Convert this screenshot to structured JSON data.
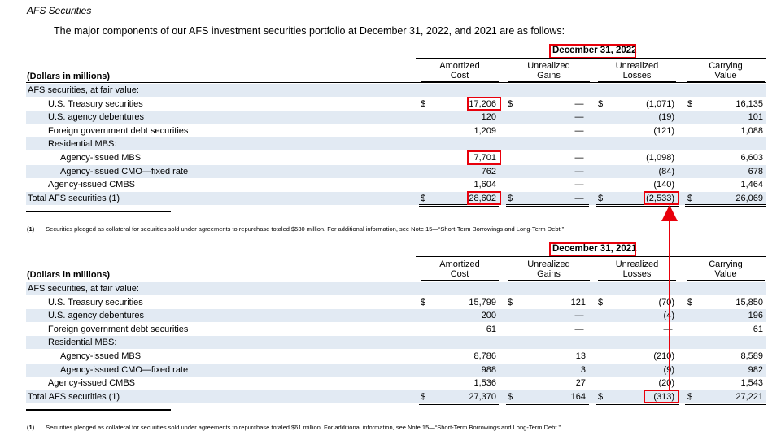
{
  "title": "AFS Securities",
  "intro": "The major components of our AFS investment securities portfolio at December 31, 2022, and 2021 are as follows:",
  "columns": {
    "amortized": [
      "Amortized",
      "Cost"
    ],
    "gains": [
      "Unrealized",
      "Gains"
    ],
    "losses": [
      "Unrealized",
      "Losses"
    ],
    "carrying": [
      "Carrying",
      "Value"
    ]
  },
  "dollars_label": "(Dollars in millions)",
  "highlight_color": "#e8000b",
  "shade_color": "#e2eaf3",
  "tables": [
    {
      "date": "December 31, 2022",
      "rows": [
        {
          "label": "AFS securities, at fair value:",
          "indent": 0,
          "shade": true
        },
        {
          "label": "U.S. Treasury securities",
          "indent": 1,
          "dollar": "$",
          "cost": "17,206",
          "gains": "—",
          "losses": "(1,071)",
          "value": "16,135"
        },
        {
          "label": "U.S. agency debentures",
          "indent": 1,
          "shade": true,
          "cost": "120",
          "gains": "—",
          "losses": "(19)",
          "value": "101"
        },
        {
          "label": "Foreign government debt securities",
          "indent": 1,
          "cost": "1,209",
          "gains": "—",
          "losses": "(121)",
          "value": "1,088"
        },
        {
          "label": "Residential MBS:",
          "indent": 1,
          "shade": true
        },
        {
          "label": "Agency-issued MBS",
          "indent": 2,
          "cost": "7,701",
          "gains": "—",
          "losses": "(1,098)",
          "value": "6,603"
        },
        {
          "label": "Agency-issued CMO—fixed rate",
          "indent": 2,
          "shade": true,
          "cost": "762",
          "gains": "—",
          "losses": "(84)",
          "value": "678"
        },
        {
          "label": "Agency-issued CMBS",
          "indent": 1,
          "cost": "1,604",
          "gains": "—",
          "losses": "(140)",
          "value": "1,464"
        },
        {
          "label": "Total AFS securities (1)",
          "indent": 0,
          "shade": true,
          "total": true,
          "dollar": "$",
          "cost": "28,602",
          "gains": "—",
          "losses": "(2,533)",
          "value": "26,069"
        }
      ],
      "footnote_num": "(1)",
      "footnote": "Securities pledged as collateral for securities sold under agreements to repurchase totaled $530 million. For additional information, see Note 15—“Short-Term Borrowings and Long-Term Debt.”"
    },
    {
      "date": "December 31, 2021",
      "rows": [
        {
          "label": "AFS securities, at fair value:",
          "indent": 0,
          "shade": true
        },
        {
          "label": "U.S. Treasury securities",
          "indent": 1,
          "dollar": "$",
          "cost": "15,799",
          "gains": "121",
          "losses": "(70)",
          "value": "15,850"
        },
        {
          "label": "U.S. agency debentures",
          "indent": 1,
          "shade": true,
          "cost": "200",
          "gains": "—",
          "losses": "(4)",
          "value": "196"
        },
        {
          "label": "Foreign government debt securities",
          "indent": 1,
          "cost": "61",
          "gains": "—",
          "losses": "—",
          "value": "61"
        },
        {
          "label": "Residential MBS:",
          "indent": 1,
          "shade": true
        },
        {
          "label": "Agency-issued MBS",
          "indent": 2,
          "cost": "8,786",
          "gains": "13",
          "losses": "(210)",
          "value": "8,589"
        },
        {
          "label": "Agency-issued CMO—fixed rate",
          "indent": 2,
          "shade": true,
          "cost": "988",
          "gains": "3",
          "losses": "(9)",
          "value": "982"
        },
        {
          "label": "Agency-issued CMBS",
          "indent": 1,
          "cost": "1,536",
          "gains": "27",
          "losses": "(20)",
          "value": "1,543"
        },
        {
          "label": "Total AFS securities (1)",
          "indent": 0,
          "shade": true,
          "total": true,
          "dollar": "$",
          "cost": "27,370",
          "gains": "164",
          "losses": "(313)",
          "value": "27,221"
        }
      ],
      "footnote_num": "(1)",
      "footnote": "Securities pledged as collateral for securities sold under agreements to repurchase totaled $61 million. For additional information, see Note 15—“Short-Term Borrowings and Long-Term Debt.”"
    }
  ]
}
